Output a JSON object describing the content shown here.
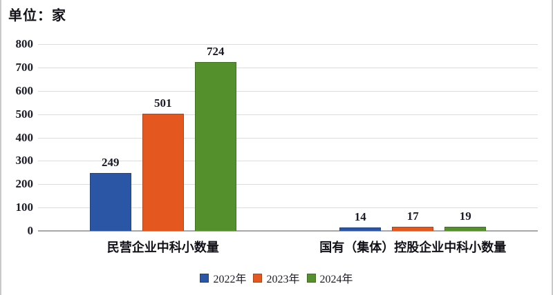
{
  "title": "单位：家",
  "colors": {
    "gridline": "#DCDCDC",
    "axis_line": "#A6A6A6",
    "text": "#1B1B26",
    "background": "#FFFFFF",
    "page_edge": "#C9C9C9"
  },
  "chart_data": {
    "type": "bar",
    "title": "单位：家",
    "categories": [
      "民营企业中科小数量",
      "国有（集体）控股企业中科小数量"
    ],
    "series": [
      {
        "name": "2022年",
        "color": "#2B55A5",
        "values": [
          249,
          14
        ]
      },
      {
        "name": "2023年",
        "color": "#E4571F",
        "values": [
          501,
          17
        ]
      },
      {
        "name": "2024年",
        "color": "#54902C",
        "values": [
          724,
          19
        ]
      }
    ],
    "xlabel": "",
    "ylabel": "",
    "ylim": [
      0,
      800
    ],
    "yticks": [
      0,
      100,
      200,
      300,
      400,
      500,
      600,
      700,
      800
    ],
    "grid": true,
    "data_labels": true,
    "legend_position": "bottom"
  }
}
